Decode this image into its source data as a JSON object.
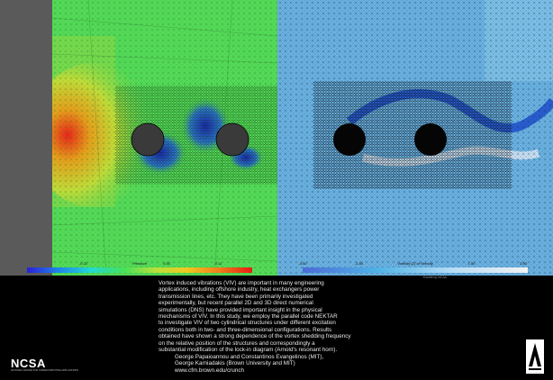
{
  "left_panel": {
    "colorbar_title": "Pressure",
    "ticks": [
      "-0.22",
      "-0.11",
      "0.00",
      "0.11",
      "0.22"
    ],
    "colors": {
      "background": "#56e05a",
      "high": "#e61c14",
      "low": "#1d25c8"
    }
  },
  "right_panel": {
    "colorbar_title": "Vorticity (Z) of Velocity",
    "ticks": [
      "-4.50",
      "-2.50",
      "-0.500",
      "1.50",
      "3.50"
    ],
    "colors": {
      "background": "#6fb8e8",
      "negative": "#1f4fd2",
      "positive": "#f4f4f4"
    }
  },
  "corner_note": "Exhibit by NCSA",
  "description": "Vortex induced vibrations (VIV) are important in many engineering\napplications, including offshore industry, heat exchangers power\ntransmission lines, etc. They have been primarily investigated\nexperimentally, but recent parallel 2D and 3D direct numerical\nsimulations (DNS) have provided important insight in the physical\nmechanisms of VIV. In this study, we employ the parallel code NEKTAR\nto investigate VIV of two cylindrical structures under different excitation\nconditions both in two- and three-dimensional configurations. Results\nobtained have shown a strong dependence of the vortex shedding frequency\non the relative position of the structures and correspondingly a\nsubstantial modification of the lock-in diagram (Arnold's resonant horn).",
  "credits": "George Papaioannou and Constantinos Evangelinos (MIT),\nGeorge Karniadakis (Brown University and MIT)\nwww.cfm.brown.edu/crunch",
  "logos": {
    "ncsa": "NCSA",
    "ncsa_subtitle": "NATIONAL CENTER FOR SUPERCOMPUTING APPLICATIONS",
    "alliance": "ALLIANCE"
  }
}
